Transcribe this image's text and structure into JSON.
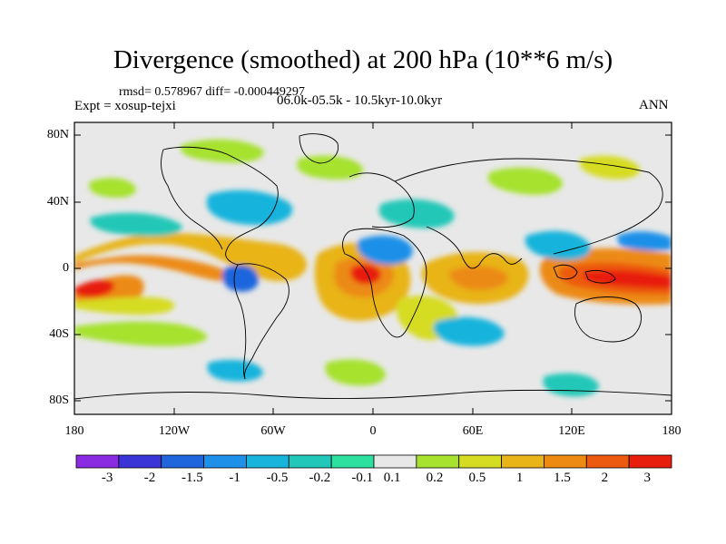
{
  "title": "Divergence (smoothed) at 200 hPa (10**6 m/s)",
  "stats_line": "rmsd= 0.578967 diff= -0.000449297",
  "experiment": "Expt = xosup-tejxi",
  "period": "06.0k-05.5k - 10.5kyr-10.0kyr",
  "season": "ANN",
  "y_axis_labels": [
    "80N",
    "40N",
    "0",
    "40S",
    "80S"
  ],
  "x_axis_labels": [
    "180",
    "120W",
    "60W",
    "0",
    "60E",
    "120E",
    "180"
  ],
  "colorbar": {
    "labels": [
      "-3",
      "-2",
      "-1.5",
      "-1",
      "-0.5",
      "-0.2",
      "-0.1",
      "0.1",
      "0.2",
      "0.5",
      "1",
      "1.5",
      "2",
      "3"
    ],
    "colors": [
      "#8a2be2",
      "#3b35d8",
      "#1f66dd",
      "#1e90e8",
      "#18b4dc",
      "#21c7b8",
      "#2ee0a0",
      "#e8e8e8",
      "#a6e22e",
      "#d6dc22",
      "#e8b418",
      "#ec8a12",
      "#ec5a10",
      "#e81e0c"
    ]
  }
}
